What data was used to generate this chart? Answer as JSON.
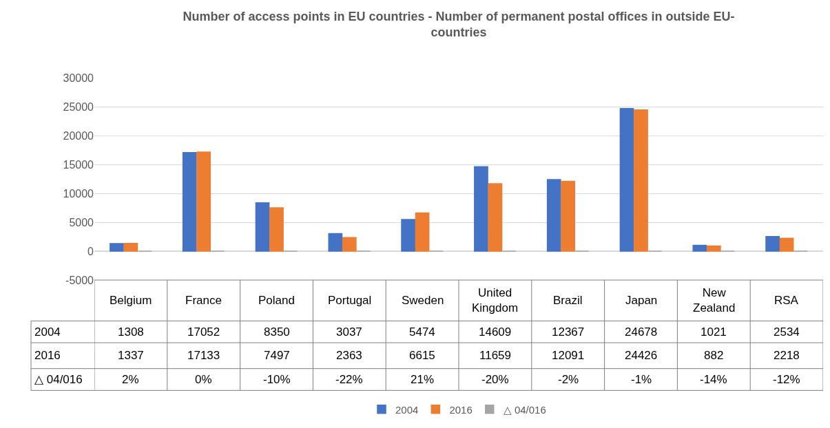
{
  "chart_data": {
    "type": "bar",
    "title": "Number of access points in EU countries - Number of permanent postal offices in outside EU-countries",
    "categories": [
      "Belgium",
      "France",
      "Poland",
      "Portugal",
      "Sweden",
      "United Kingdom",
      "Brazil",
      "Japan",
      "New Zealand",
      "RSA"
    ],
    "series": [
      {
        "name": "2004",
        "color": "#4472c4",
        "values": [
          1308,
          17052,
          8350,
          3037,
          5474,
          14609,
          12367,
          24678,
          1021,
          2534
        ],
        "value_labels": [
          "1308",
          "17052",
          "8350",
          "3037",
          "5474",
          "14609",
          "12367",
          "24678",
          "1021",
          "2534"
        ]
      },
      {
        "name": "2016",
        "color": "#ed7d31",
        "values": [
          1337,
          17133,
          7497,
          2363,
          6615,
          11659,
          12091,
          24426,
          882,
          2218
        ],
        "value_labels": [
          "1337",
          "17133",
          "7497",
          "2363",
          "6615",
          "11659",
          "12091",
          "24426",
          "882",
          "2218"
        ]
      },
      {
        "name": "△ 04/016",
        "color": "#a5a5a5",
        "values": [
          0.02,
          0,
          -0.1,
          -0.22,
          0.21,
          -0.2,
          -0.02,
          -0.01,
          -0.14,
          -0.12
        ],
        "value_labels": [
          "2%",
          "0%",
          "-10%",
          "-22%",
          "21%",
          "-20%",
          "-2%",
          "-1%",
          "-14%",
          "-12%"
        ]
      }
    ],
    "ylim": [
      -5000,
      30000
    ],
    "yticks": [
      -5000,
      0,
      5000,
      10000,
      15000,
      20000,
      25000,
      30000
    ],
    "grid": "y",
    "legend": "bottom"
  }
}
